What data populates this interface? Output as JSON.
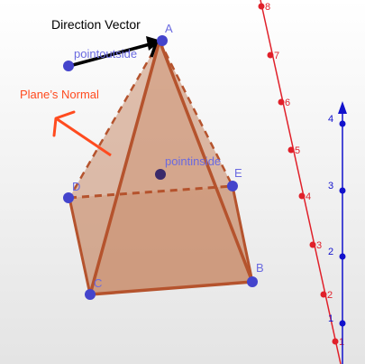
{
  "labels": {
    "direction_vector": "Direction Vector",
    "plane_normal": "Plane’s Normal",
    "point_outside": "pointoutside",
    "point_inside": "pointinside",
    "A": "A",
    "B": "B",
    "C": "C",
    "D": "D",
    "E": "E"
  },
  "axes": {
    "red_axis_ticks": [
      "1",
      "2",
      "3",
      "4",
      "5",
      "6",
      "7",
      "8"
    ],
    "blue_axis_ticks": [
      "1",
      "2",
      "3",
      "4"
    ]
  },
  "colors": {
    "background": "#ffffff",
    "ground_plane": "#ececec",
    "pyramid_fill": "#c98c6b",
    "pyramid_edge": "#b5532d",
    "point": "#4444cc",
    "point_label": "#6a6ae0",
    "normal_arrow": "#ff4b1f",
    "direction_vector": "#000000",
    "red_axis": "#e0202a",
    "blue_axis": "#1111cc"
  },
  "icons": {
    "normal": "arrow-icon",
    "direction": "arrow-icon"
  }
}
